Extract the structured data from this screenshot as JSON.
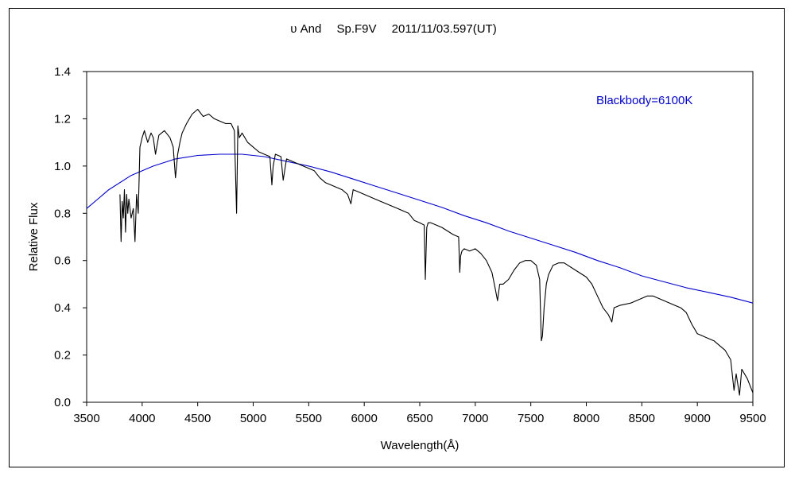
{
  "chart_data": {
    "type": "line",
    "title": "υ And　 Sp.F9V　 2011/11/03.597(UT)",
    "xlabel": "Wavelength(Å)",
    "ylabel": "Relative Flux",
    "xlim": [
      3500,
      9500
    ],
    "ylim": [
      0.0,
      1.4
    ],
    "xticks": [
      "3500",
      "4000",
      "4500",
      "5000",
      "5500",
      "6000",
      "6500",
      "7000",
      "7500",
      "8000",
      "8500",
      "9000",
      "9500"
    ],
    "yticks": [
      "0.0",
      "0.2",
      "0.4",
      "0.6",
      "0.8",
      "1.0",
      "1.2",
      "1.4"
    ],
    "grid": false,
    "annotation": "Blackbody=6100K",
    "series": [
      {
        "name": "Blackbody=6100K",
        "color": "#0000cc",
        "x": [
          3500,
          3700,
          3900,
          4100,
          4300,
          4500,
          4700,
          4900,
          5100,
          5300,
          5500,
          5700,
          5900,
          6100,
          6300,
          6500,
          6700,
          6900,
          7100,
          7300,
          7500,
          7700,
          7900,
          8100,
          8300,
          8500,
          8700,
          8900,
          9100,
          9300,
          9500
        ],
        "y": [
          0.82,
          0.9,
          0.96,
          1.0,
          1.03,
          1.045,
          1.05,
          1.05,
          1.04,
          1.02,
          1.0,
          0.975,
          0.945,
          0.915,
          0.885,
          0.855,
          0.825,
          0.79,
          0.76,
          0.725,
          0.695,
          0.665,
          0.635,
          0.6,
          0.57,
          0.535,
          0.51,
          0.485,
          0.465,
          0.445,
          0.42
        ]
      },
      {
        "name": "",
        "color": "#000000",
        "x": [
          3800,
          3810,
          3820,
          3830,
          3840,
          3850,
          3860,
          3870,
          3880,
          3900,
          3920,
          3935,
          3950,
          3965,
          3980,
          4000,
          4020,
          4050,
          4080,
          4100,
          4120,
          4150,
          4200,
          4250,
          4280,
          4300,
          4320,
          4340,
          4360,
          4400,
          4450,
          4500,
          4550,
          4600,
          4650,
          4700,
          4750,
          4800,
          4830,
          4850,
          4862,
          4875,
          4900,
          4950,
          5000,
          5050,
          5100,
          5150,
          5168,
          5180,
          5200,
          5250,
          5270,
          5300,
          5350,
          5400,
          5450,
          5500,
          5550,
          5600,
          5650,
          5700,
          5750,
          5800,
          5850,
          5880,
          5890,
          5900,
          5950,
          6000,
          6100,
          6200,
          6300,
          6400,
          6450,
          6500,
          6540,
          6550,
          6563,
          6575,
          6600,
          6700,
          6800,
          6850,
          6860,
          6868,
          6880,
          6900,
          6950,
          7000,
          7050,
          7100,
          7150,
          7180,
          7200,
          7220,
          7250,
          7300,
          7350,
          7400,
          7450,
          7500,
          7550,
          7580,
          7595,
          7605,
          7620,
          7640,
          7660,
          7700,
          7750,
          7800,
          7900,
          8000,
          8050,
          8100,
          8150,
          8200,
          8230,
          8250,
          8300,
          8400,
          8500,
          8550,
          8600,
          8650,
          8700,
          8750,
          8800,
          8850,
          8900,
          8950,
          9000,
          9050,
          9100,
          9150,
          9200,
          9250,
          9300,
          9330,
          9350,
          9380,
          9400,
          9450,
          9500
        ],
        "y": [
          0.88,
          0.68,
          0.85,
          0.78,
          0.9,
          0.72,
          0.88,
          0.8,
          0.86,
          0.78,
          0.82,
          0.68,
          0.88,
          0.8,
          1.08,
          1.12,
          1.15,
          1.1,
          1.14,
          1.12,
          1.05,
          1.13,
          1.15,
          1.12,
          1.08,
          0.95,
          1.05,
          1.1,
          1.14,
          1.18,
          1.22,
          1.24,
          1.21,
          1.22,
          1.2,
          1.19,
          1.18,
          1.18,
          1.15,
          0.8,
          1.17,
          1.12,
          1.14,
          1.1,
          1.08,
          1.06,
          1.05,
          1.04,
          0.92,
          1.0,
          1.05,
          1.04,
          0.94,
          1.03,
          1.02,
          1.01,
          1.0,
          0.99,
          0.98,
          0.95,
          0.93,
          0.92,
          0.91,
          0.9,
          0.88,
          0.84,
          0.87,
          0.9,
          0.89,
          0.88,
          0.86,
          0.84,
          0.82,
          0.8,
          0.77,
          0.76,
          0.75,
          0.52,
          0.74,
          0.76,
          0.76,
          0.74,
          0.71,
          0.7,
          0.55,
          0.62,
          0.64,
          0.65,
          0.64,
          0.65,
          0.63,
          0.6,
          0.55,
          0.48,
          0.43,
          0.5,
          0.5,
          0.52,
          0.56,
          0.59,
          0.6,
          0.6,
          0.58,
          0.52,
          0.26,
          0.28,
          0.4,
          0.5,
          0.54,
          0.58,
          0.59,
          0.59,
          0.56,
          0.53,
          0.5,
          0.45,
          0.4,
          0.37,
          0.34,
          0.4,
          0.41,
          0.42,
          0.44,
          0.45,
          0.45,
          0.44,
          0.43,
          0.42,
          0.41,
          0.4,
          0.38,
          0.33,
          0.29,
          0.28,
          0.27,
          0.26,
          0.24,
          0.22,
          0.18,
          0.05,
          0.12,
          0.03,
          0.14,
          0.1,
          0.04
        ]
      }
    ]
  }
}
